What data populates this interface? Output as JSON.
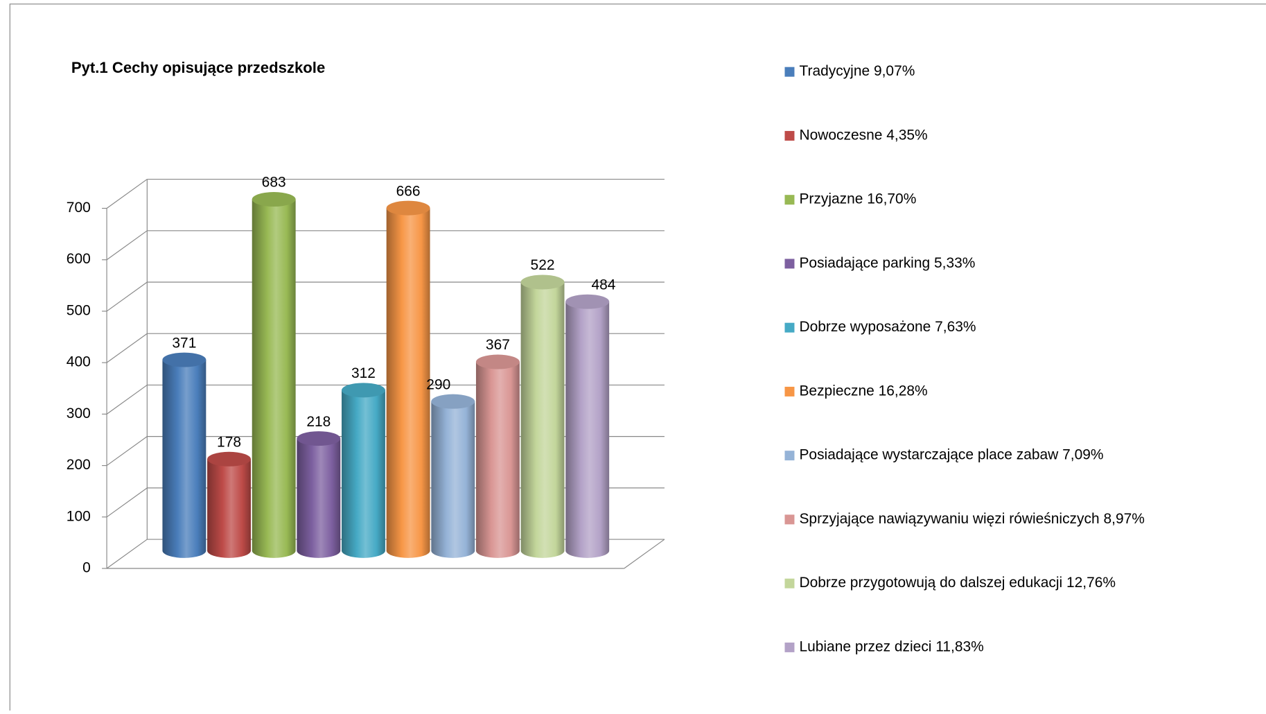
{
  "chart_data": {
    "type": "bar3d",
    "title": "Pyt.1 Cechy opisujące przedszkole",
    "categories": [
      "Tradycyjne 9,07%",
      "Nowoczesne 4,35%",
      "Przyjazne 16,70%",
      "Posiadające parking 5,33%",
      "Dobrze wyposażone 7,63%",
      "Bezpieczne  16,28%",
      "Posiadające wystarczające place zabaw 7,09%",
      "Sprzyjające nawiązywaniu więzi rówieśniczych 8,97%",
      "Dobrze przygotowują do dalszej edukacji 12,76%",
      "Lubiane przez dzieci 11,83%"
    ],
    "values": [
      371,
      178,
      683,
      218,
      312,
      666,
      290,
      367,
      522,
      484
    ],
    "colors": [
      "#4a7ebb",
      "#be4b48",
      "#98b954",
      "#7d60a0",
      "#46aac5",
      "#f79646",
      "#95b3d7",
      "#d99694",
      "#c3d69b",
      "#b3a2c7"
    ],
    "ylim": [
      0,
      700
    ],
    "yticks": [
      0,
      100,
      200,
      300,
      400,
      500,
      600,
      700
    ],
    "grid": true,
    "legend": "right"
  }
}
